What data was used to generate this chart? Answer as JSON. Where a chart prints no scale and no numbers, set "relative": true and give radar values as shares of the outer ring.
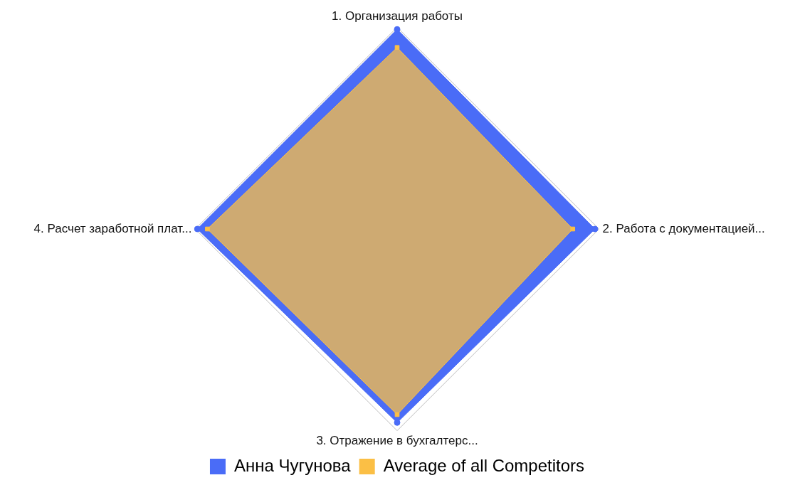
{
  "chart_data": {
    "type": "radar",
    "relative": true,
    "grid": true,
    "legend": "bottom",
    "categories": [
      "1. Организация работы",
      "2. Работа с документацией...",
      "3. Отражение в бухгалтерс...",
      "4. Расчет заработной плат..."
    ],
    "series": [
      {
        "name": "Анна Чугунова",
        "color": "#4a6cf7",
        "marker": "circle",
        "values": [
          0.99,
          0.98,
          0.96,
          0.99
        ]
      },
      {
        "name": "Average of all Competitors",
        "color": "#fbbf45",
        "marker": "square",
        "values": [
          0.9,
          0.87,
          0.92,
          0.94
        ]
      }
    ]
  }
}
